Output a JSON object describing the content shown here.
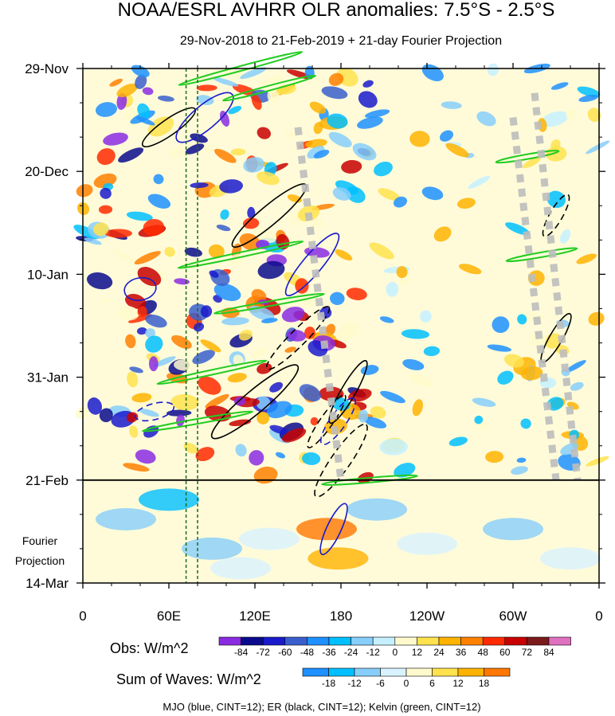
{
  "chart_data": {
    "type": "heatmap",
    "title": "NOAA/ESRL AVHRR OLR anomalies: 7.5°S - 2.5°S",
    "subtitle": "29-Nov-2018 to 21-Feb-2019 + 21-day Fourier Projection",
    "x_ticks": [
      "0",
      "60E",
      "120E",
      "180",
      "120W",
      "60W",
      "0"
    ],
    "x_range_deg_east": [
      0,
      360
    ],
    "y_ticks": [
      "29-Nov",
      "20-Dec",
      "10-Jan",
      "31-Jan",
      "21-Feb",
      "14-Mar"
    ],
    "y_range_days": [
      0,
      105
    ],
    "observation_end_label": "21-Feb",
    "projection_label": [
      "Fourier",
      "Projection"
    ],
    "obs_colorbar": {
      "title": "Obs: W/m^2",
      "levels": [
        "-84",
        "-72",
        "-60",
        "-48",
        "-36",
        "-24",
        "-12",
        "0",
        "12",
        "24",
        "36",
        "48",
        "60",
        "72",
        "84"
      ],
      "colors": [
        "#8a2be2",
        "#0a0a8c",
        "#1a1acd",
        "#3a5fcd",
        "#1e90ff",
        "#00bfff",
        "#87cefa",
        "#c6f0ff",
        "#fffacd",
        "#ffe24d",
        "#ffb300",
        "#ff8000",
        "#ff2a00",
        "#c80000",
        "#7a1a1a",
        "#e070c0"
      ]
    },
    "waves_colorbar": {
      "title": "Sum of Waves: W/m^2",
      "levels": [
        "-18",
        "-12",
        "-6",
        "0",
        "6",
        "12",
        "18"
      ],
      "colors": [
        "#1e90ff",
        "#00bfff",
        "#87cefa",
        "#d8f3ff",
        "#fffacd",
        "#ffe24d",
        "#ffb300",
        "#ff7800"
      ]
    },
    "contours_legend": "MJO (blue, CINT=12); ER (black, CINT=12); Kelvin (green, CINT=12)",
    "series": [
      {
        "name": "MJO",
        "color": "#1a1acd",
        "cint": 12
      },
      {
        "name": "ER",
        "color": "#000000",
        "cint": 12
      },
      {
        "name": "Kelvin",
        "color": "#22cc22",
        "cint": 12
      }
    ]
  }
}
